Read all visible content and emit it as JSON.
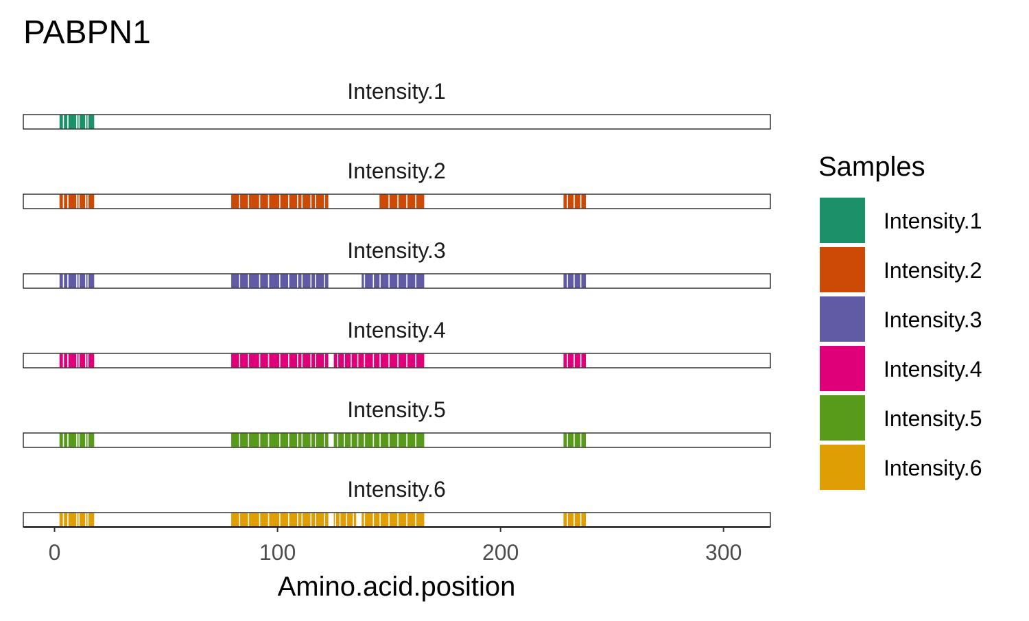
{
  "chart_data": {
    "type": "bar",
    "subtype": "faceted-peptide-coverage",
    "title": "PABPN1",
    "xlabel": "Amino.acid.position",
    "xlim": [
      -14,
      321
    ],
    "xticks": [
      0,
      100,
      200,
      300
    ],
    "protein_length": 306,
    "grid": false,
    "legend": {
      "title": "Samples",
      "position": "right"
    },
    "series": [
      {
        "name": "Intensity.1",
        "color": "#1B9069",
        "peptides": [
          [
            2,
            4
          ],
          [
            4,
            6
          ],
          [
            6,
            10
          ],
          [
            10,
            11
          ],
          [
            11,
            14
          ],
          [
            14,
            15
          ],
          [
            15,
            18
          ]
        ]
      },
      {
        "name": "Intensity.2",
        "color": "#CC4A06",
        "peptides": [
          [
            2,
            4
          ],
          [
            4,
            6
          ],
          [
            6,
            10
          ],
          [
            10,
            11
          ],
          [
            11,
            14
          ],
          [
            14,
            15
          ],
          [
            15,
            18
          ],
          [
            79,
            83
          ],
          [
            83,
            87
          ],
          [
            87,
            92
          ],
          [
            92,
            96
          ],
          [
            96,
            101
          ],
          [
            101,
            105
          ],
          [
            105,
            109
          ],
          [
            109,
            111
          ],
          [
            111,
            115
          ],
          [
            115,
            117
          ],
          [
            117,
            121
          ],
          [
            121,
            123
          ],
          [
            145.5,
            150
          ],
          [
            150,
            154
          ],
          [
            154,
            158
          ],
          [
            158,
            162
          ],
          [
            162,
            166
          ],
          [
            228,
            230
          ],
          [
            230,
            233
          ],
          [
            233,
            236
          ],
          [
            236,
            238.5
          ]
        ]
      },
      {
        "name": "Intensity.3",
        "color": "#615BA6",
        "peptides": [
          [
            2,
            4
          ],
          [
            4,
            6
          ],
          [
            6,
            10
          ],
          [
            10,
            11
          ],
          [
            11,
            14
          ],
          [
            14,
            15
          ],
          [
            15,
            18
          ],
          [
            79,
            83
          ],
          [
            83,
            87
          ],
          [
            87,
            92
          ],
          [
            92,
            96
          ],
          [
            96,
            101
          ],
          [
            101,
            105
          ],
          [
            105,
            109
          ],
          [
            109,
            111
          ],
          [
            111,
            115
          ],
          [
            115,
            117
          ],
          [
            117,
            121
          ],
          [
            121,
            123
          ],
          [
            137.5,
            139
          ],
          [
            139,
            143
          ],
          [
            143,
            146
          ],
          [
            146,
            150
          ],
          [
            150,
            154
          ],
          [
            154,
            158
          ],
          [
            158,
            162
          ],
          [
            162,
            166
          ],
          [
            228,
            230
          ],
          [
            230,
            233
          ],
          [
            233,
            236
          ],
          [
            236,
            238.5
          ]
        ]
      },
      {
        "name": "Intensity.4",
        "color": "#DF0079",
        "peptides": [
          [
            2,
            4
          ],
          [
            4,
            6
          ],
          [
            6,
            10
          ],
          [
            10,
            11
          ],
          [
            11,
            14
          ],
          [
            14,
            15
          ],
          [
            15,
            18
          ],
          [
            79,
            83
          ],
          [
            83,
            87
          ],
          [
            87,
            92
          ],
          [
            92,
            96
          ],
          [
            96,
            101
          ],
          [
            101,
            105
          ],
          [
            105,
            109
          ],
          [
            109,
            111
          ],
          [
            111,
            115
          ],
          [
            115,
            117
          ],
          [
            117,
            121
          ],
          [
            121,
            123
          ],
          [
            125,
            127
          ],
          [
            127,
            130
          ],
          [
            130,
            133
          ],
          [
            133,
            136
          ],
          [
            136,
            139
          ],
          [
            139,
            143
          ],
          [
            143,
            146
          ],
          [
            146,
            150
          ],
          [
            150,
            154
          ],
          [
            154,
            158
          ],
          [
            158,
            162
          ],
          [
            162,
            166
          ],
          [
            228,
            230
          ],
          [
            230,
            233
          ],
          [
            233,
            236
          ],
          [
            236,
            238.5
          ]
        ]
      },
      {
        "name": "Intensity.5",
        "color": "#589A1A",
        "peptides": [
          [
            2,
            4
          ],
          [
            4,
            6
          ],
          [
            6,
            10
          ],
          [
            10,
            11
          ],
          [
            11,
            14
          ],
          [
            14,
            15
          ],
          [
            15,
            18
          ],
          [
            79,
            83
          ],
          [
            83,
            87
          ],
          [
            87,
            92
          ],
          [
            92,
            96
          ],
          [
            96,
            101
          ],
          [
            101,
            105
          ],
          [
            105,
            109
          ],
          [
            109,
            111
          ],
          [
            111,
            115
          ],
          [
            115,
            117
          ],
          [
            117,
            121
          ],
          [
            121,
            123
          ],
          [
            125,
            127
          ],
          [
            127,
            130
          ],
          [
            130,
            133
          ],
          [
            133,
            136
          ],
          [
            136,
            139
          ],
          [
            139,
            143
          ],
          [
            143,
            146
          ],
          [
            146,
            150
          ],
          [
            150,
            154
          ],
          [
            154,
            158
          ],
          [
            158,
            162
          ],
          [
            162,
            166
          ],
          [
            228,
            230
          ],
          [
            230,
            233
          ],
          [
            233,
            236
          ],
          [
            236,
            238.5
          ]
        ]
      },
      {
        "name": "Intensity.6",
        "color": "#DF9E04",
        "peptides": [
          [
            2,
            4
          ],
          [
            4,
            6
          ],
          [
            6,
            10
          ],
          [
            10,
            11
          ],
          [
            11,
            14
          ],
          [
            14,
            15
          ],
          [
            15,
            18
          ],
          [
            79,
            83
          ],
          [
            83,
            87
          ],
          [
            87,
            92
          ],
          [
            92,
            96
          ],
          [
            96,
            101
          ],
          [
            101,
            105
          ],
          [
            105,
            109
          ],
          [
            109,
            111
          ],
          [
            111,
            115
          ],
          [
            115,
            117
          ],
          [
            117,
            121
          ],
          [
            121,
            123
          ],
          [
            125,
            126
          ],
          [
            126,
            128
          ],
          [
            128,
            131
          ],
          [
            131,
            134
          ],
          [
            134,
            135.5
          ],
          [
            137.5,
            139
          ],
          [
            139,
            143
          ],
          [
            143,
            146
          ],
          [
            146,
            150
          ],
          [
            150,
            154
          ],
          [
            154,
            158
          ],
          [
            158,
            162
          ],
          [
            162,
            166
          ],
          [
            228,
            230
          ],
          [
            230,
            233
          ],
          [
            233,
            236
          ],
          [
            236,
            238.5
          ]
        ]
      }
    ]
  }
}
